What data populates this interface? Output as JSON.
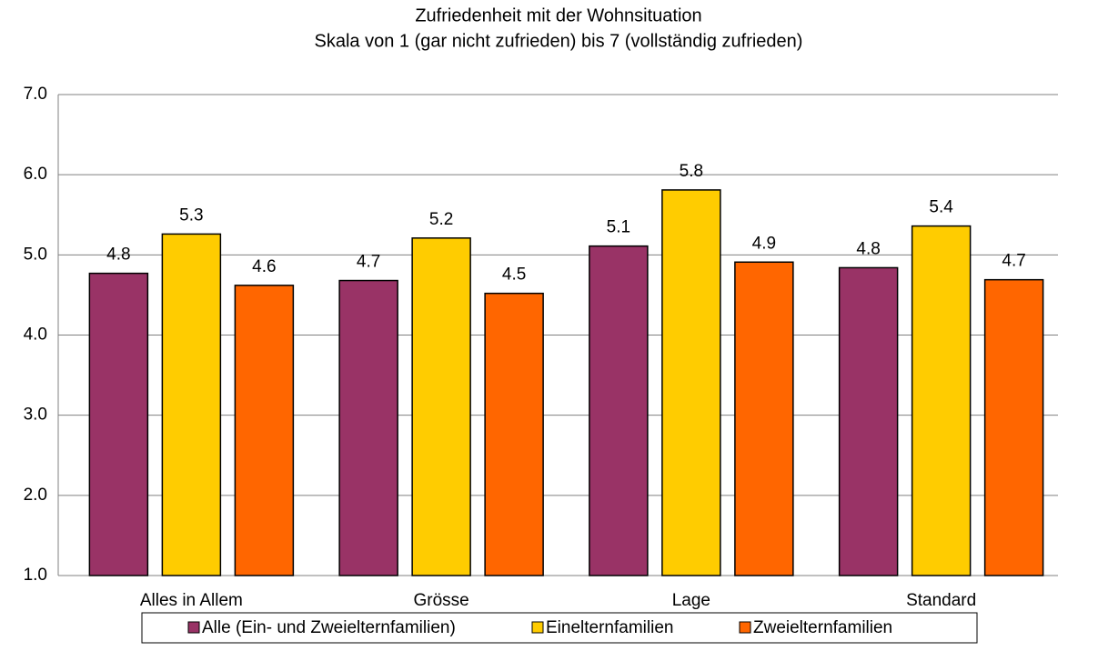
{
  "chart_data": {
    "type": "bar",
    "title": "Zufriedenheit mit der Wohnsituation",
    "subtitle": "Skala von 1 (gar nicht zufrieden) bis 7 (vollständig zufrieden)",
    "categories": [
      "Alles in Allem",
      "Grösse",
      "Lage",
      "Standard"
    ],
    "series": [
      {
        "name": "Alle (Ein- und Zweielternfamilien)",
        "color": "#993366",
        "values": [
          4.77,
          4.68,
          5.11,
          4.84
        ],
        "value_labels": [
          "4.8",
          "4.7",
          "5.1",
          "4.8"
        ]
      },
      {
        "name": "Einelternfamilien",
        "color": "#ffcc00",
        "values": [
          5.26,
          5.21,
          5.81,
          5.36
        ],
        "value_labels": [
          "5.3",
          "5.2",
          "5.8",
          "5.4"
        ]
      },
      {
        "name": "Zweielternfamilien",
        "color": "#ff6600",
        "values": [
          4.62,
          4.52,
          4.91,
          4.69
        ],
        "value_labels": [
          "4.6",
          "4.5",
          "4.9",
          "4.7"
        ]
      }
    ],
    "ylim": [
      1,
      7
    ],
    "yticks": [
      {
        "value": 1,
        "label": "1.0"
      },
      {
        "value": 2,
        "label": "2.0"
      },
      {
        "value": 3,
        "label": "3.0"
      },
      {
        "value": 4,
        "label": "4.0"
      },
      {
        "value": 5,
        "label": "5.0"
      },
      {
        "value": 6,
        "label": "6.0"
      },
      {
        "value": 7,
        "label": "7.0"
      }
    ],
    "grid": true,
    "legend": "bottom"
  }
}
